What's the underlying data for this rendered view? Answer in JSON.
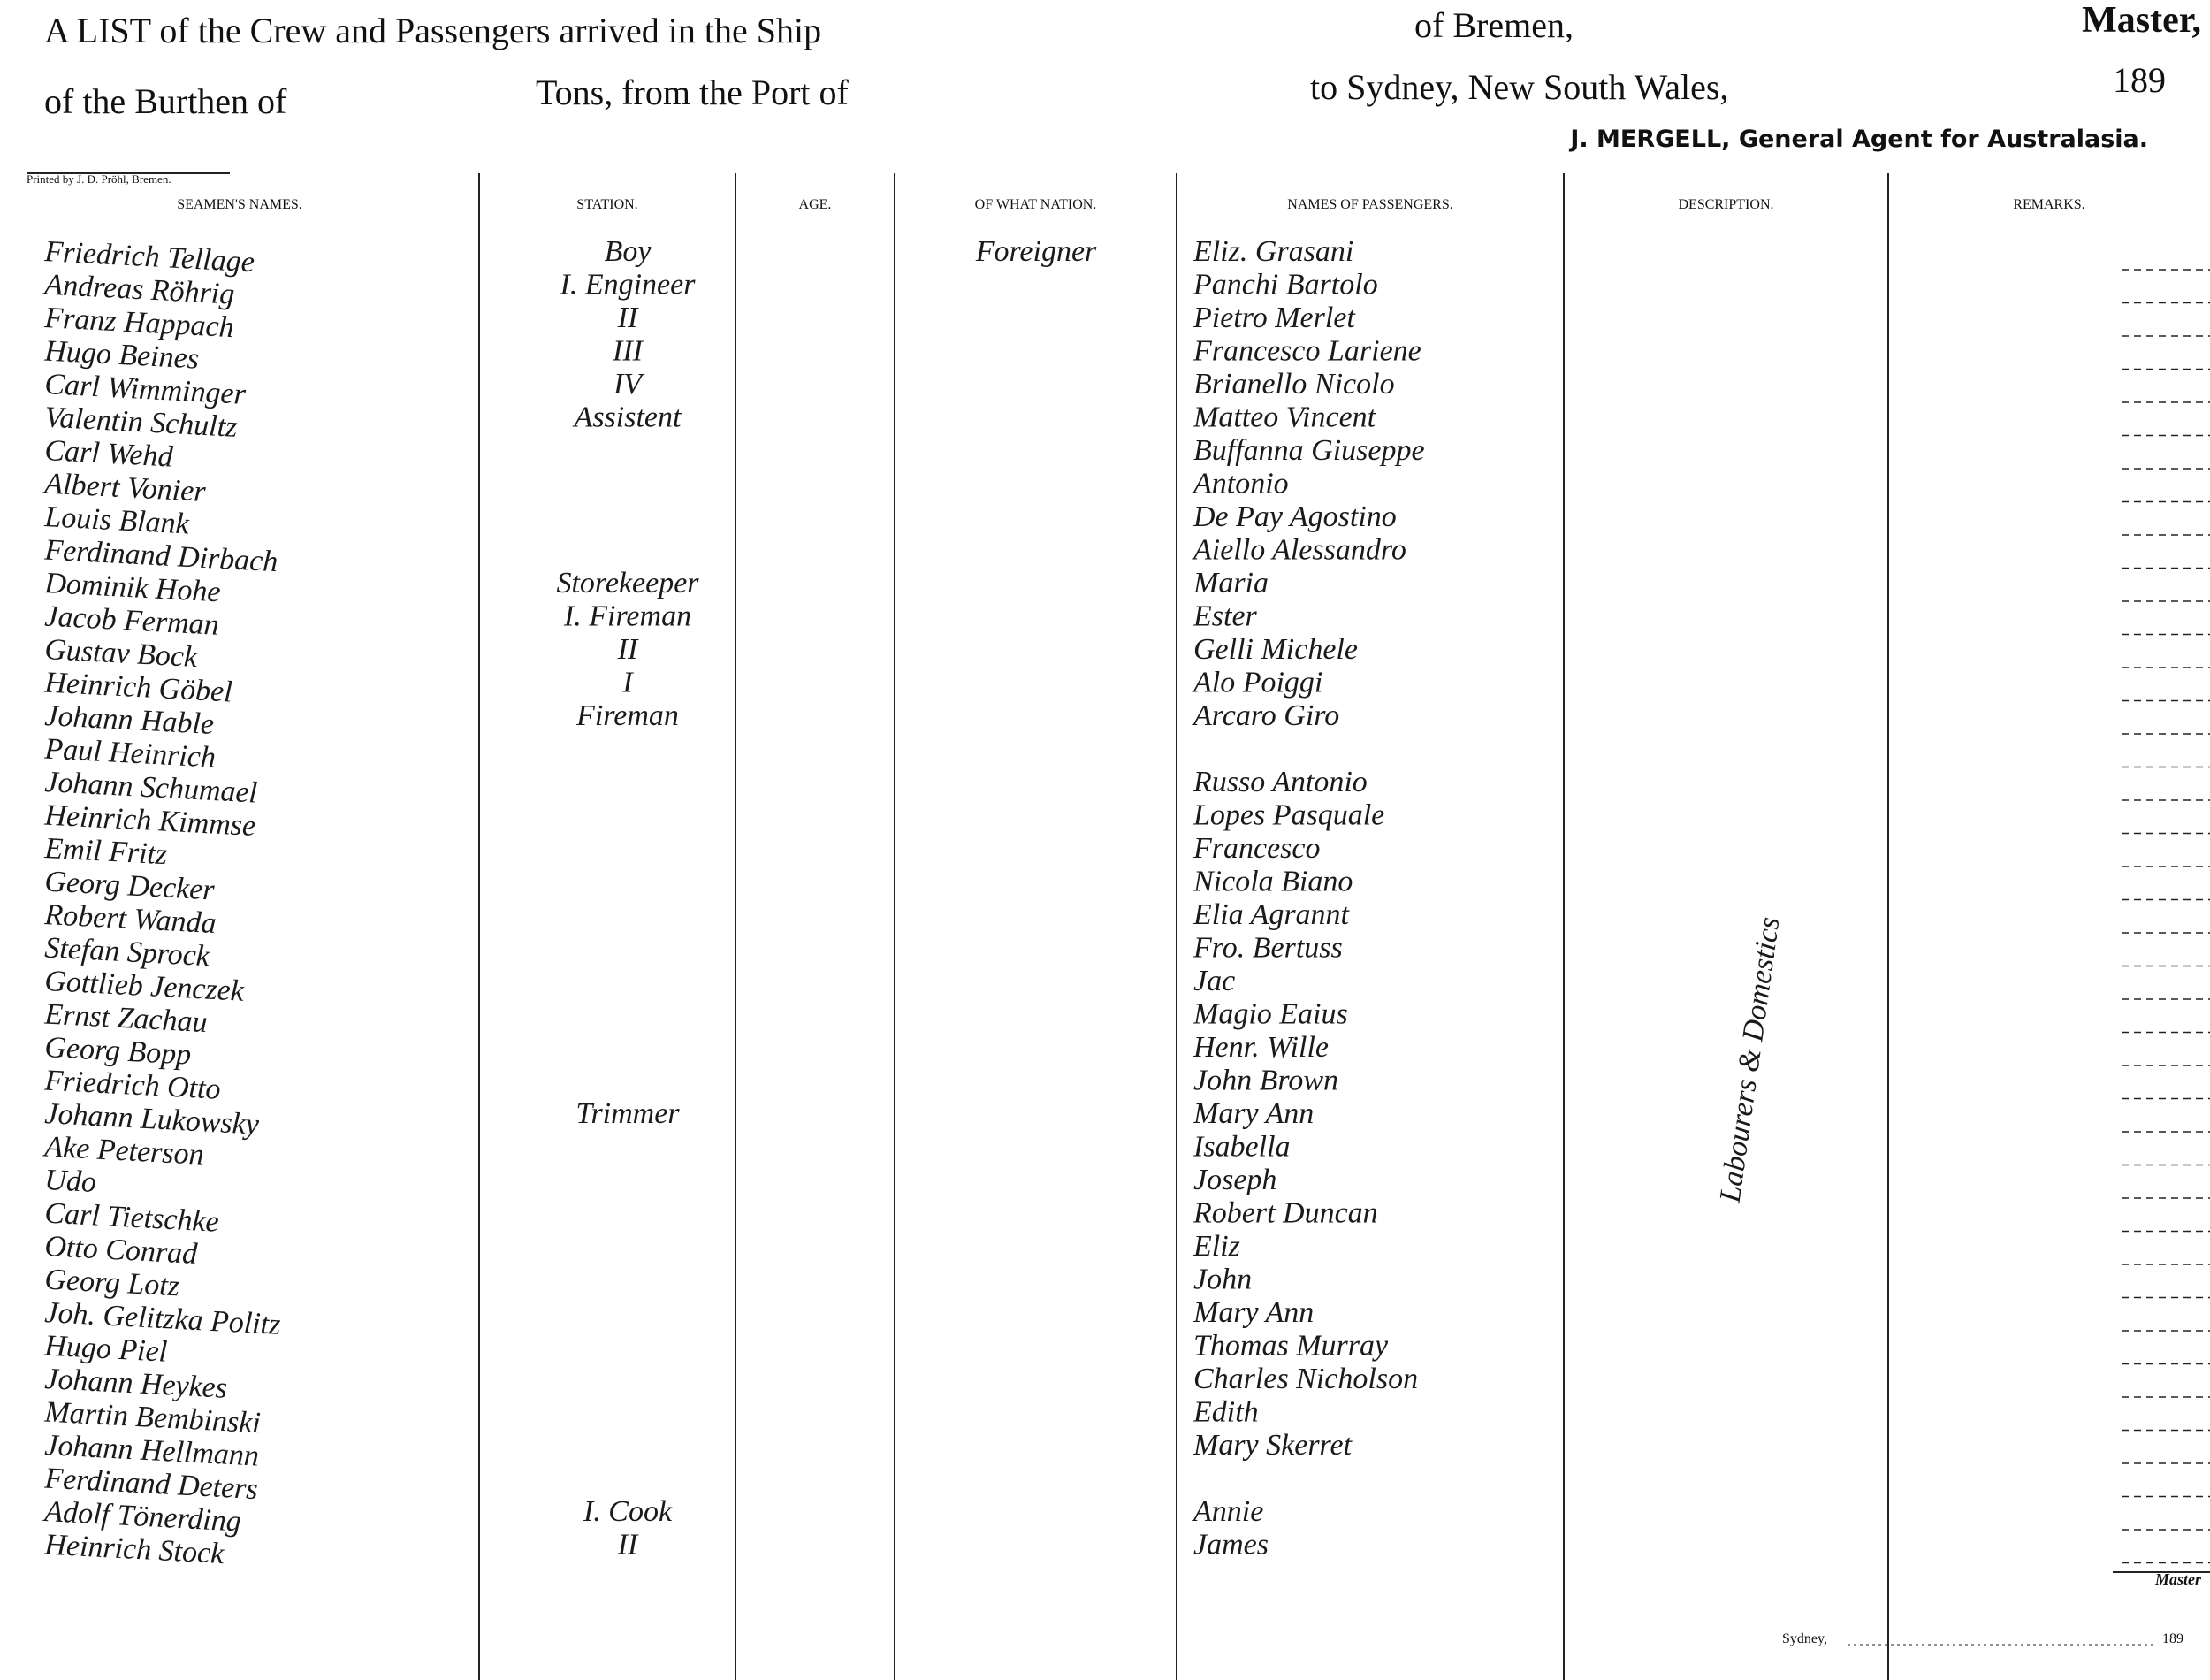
{
  "header": {
    "line1": [
      "A LIST of the Crew and Passengers arrived in the Ship",
      "of Bremen,",
      "Master,"
    ],
    "line2": [
      "of the Burthen of",
      "Tons, from the Port of",
      "to Sydney, New South Wales,",
      "189"
    ],
    "agent": "J. MERGELL, General Agent for Australasia.",
    "printer": "Printed by J. D. Pröhl, Bremen."
  },
  "table": {
    "columns": [
      "SEAMEN'S NAMES.",
      "STATION.",
      "AGE.",
      "OF WHAT NATION.",
      "NAMES OF PASSENGERS.",
      "DESCRIPTION.",
      "REMARKS."
    ],
    "rows": [
      {
        "name": "Friedrich Tellage",
        "station": "Boy",
        "nation": "Foreigner",
        "passenger": "Eliz. Grasani"
      },
      {
        "name": "Andreas Röhrig",
        "station": "I. Engineer",
        "passenger": "Panchi Bartolo"
      },
      {
        "name": "Franz Happach",
        "station": "II",
        "passenger": "Pietro Merlet"
      },
      {
        "name": "Hugo Beines",
        "station": "III",
        "passenger": "Francesco Lariene"
      },
      {
        "name": "Carl Wimminger",
        "station": "IV",
        "passenger": "Brianello Nicolo"
      },
      {
        "name": "Valentin Schultz",
        "station": "Assistent",
        "passenger": "Matteo Vincent"
      },
      {
        "name": "Carl Wehd",
        "passenger": "Buffanna Giuseppe"
      },
      {
        "name": "Albert Vonier",
        "passenger": "Antonio"
      },
      {
        "name": "Louis Blank",
        "passenger": "De Pay Agostino"
      },
      {
        "name": "Ferdinand Dirbach",
        "passenger": "Aiello Alessandro"
      },
      {
        "name": "Dominik Hohe",
        "station": "Storekeeper",
        "passenger": "Maria"
      },
      {
        "name": "Jacob Ferman",
        "station": "I. Fireman",
        "passenger": "Ester"
      },
      {
        "name": "Gustav Bock",
        "station": "II",
        "passenger": "Gelli Michele"
      },
      {
        "name": "Heinrich Göbel",
        "station": "I",
        "passenger": "Alo Poiggi"
      },
      {
        "name": "Johann Hable",
        "station": "Fireman",
        "passenger": "Arcaro Giro"
      },
      {
        "name": "Paul Heinrich"
      },
      {
        "name": "Johann Schumael",
        "passenger": "Russo Antonio"
      },
      {
        "name": "Heinrich Kimmse",
        "passenger": "Lopes Pasquale"
      },
      {
        "name": "Emil Fritz",
        "passenger": "Francesco"
      },
      {
        "name": "Georg Decker",
        "passenger": "Nicola Biano"
      },
      {
        "name": "Robert Wanda",
        "passenger": "Elia Agrannt"
      },
      {
        "name": "Stefan Sprock",
        "passenger": "Fro. Bertuss"
      },
      {
        "name": "Gottlieb Jenczek",
        "passenger": "Jac"
      },
      {
        "name": "Ernst Zachau",
        "passenger": "Magio Eaius"
      },
      {
        "name": "Georg Bopp",
        "passenger": "Henr. Wille"
      },
      {
        "name": "Friedrich Otto",
        "passenger": "John Brown"
      },
      {
        "name": "Johann Lukowsky",
        "station": "Trimmer",
        "passenger": "Mary Ann"
      },
      {
        "name": "Ake Peterson",
        "passenger": "Isabella"
      },
      {
        "name": "Udo",
        "passenger": "Joseph"
      },
      {
        "name": "Carl Tietschke",
        "passenger": "Robert Duncan"
      },
      {
        "name": "Otto Conrad",
        "passenger": "Eliz"
      },
      {
        "name": "Georg Lotz",
        "passenger": "John"
      },
      {
        "name": "Joh. Gelitzka Politz",
        "passenger": "Mary Ann"
      },
      {
        "name": "Hugo Piel",
        "passenger": "Thomas Murray"
      },
      {
        "name": "Johann Heykes",
        "passenger": "Charles Nicholson"
      },
      {
        "name": "Martin Bembinski",
        "passenger": "Edith"
      },
      {
        "name": "Johann Hellmann",
        "passenger": "Mary Skerret"
      },
      {
        "name": "Ferdinand Deters"
      },
      {
        "name": "Adolf Tönerding",
        "station": "I. Cook",
        "passenger": "Annie"
      },
      {
        "name": "Heinrich Stock",
        "station": "II",
        "passenger": "James"
      }
    ],
    "description": "Labourers & Domestics"
  },
  "footer": {
    "master": "Master",
    "sydney": "Sydney,",
    "year": "189"
  }
}
